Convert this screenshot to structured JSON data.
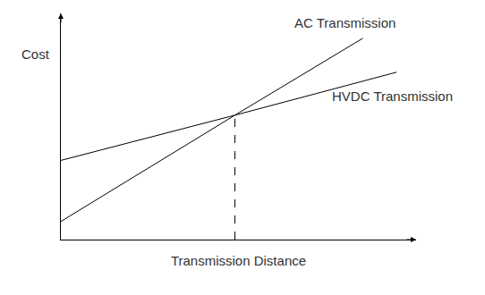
{
  "chart_data": {
    "type": "line",
    "x_label": "Transmission Distance",
    "y_label": "Cost",
    "xlim": [
      0,
      10
    ],
    "ylim": [
      0,
      10
    ],
    "xticks": [],
    "yticks": [],
    "tick_labels": false,
    "grid": false,
    "series": [
      {
        "name": "AC Transmission",
        "color": "#000000",
        "line_style": "solid",
        "x": [
          0,
          4.9,
          8.5
        ],
        "values": [
          0.8,
          5.5,
          8.9
        ]
      },
      {
        "name": "HVDC Transmission",
        "color": "#000000",
        "line_style": "solid",
        "x": [
          0,
          4.9,
          9.45
        ],
        "values": [
          3.5,
          5.5,
          7.4
        ]
      },
      {
        "color": "#000000",
        "line_style": "dashed",
        "x": [
          4.9,
          4.9
        ],
        "values": [
          0,
          5.5
        ]
      }
    ]
  }
}
